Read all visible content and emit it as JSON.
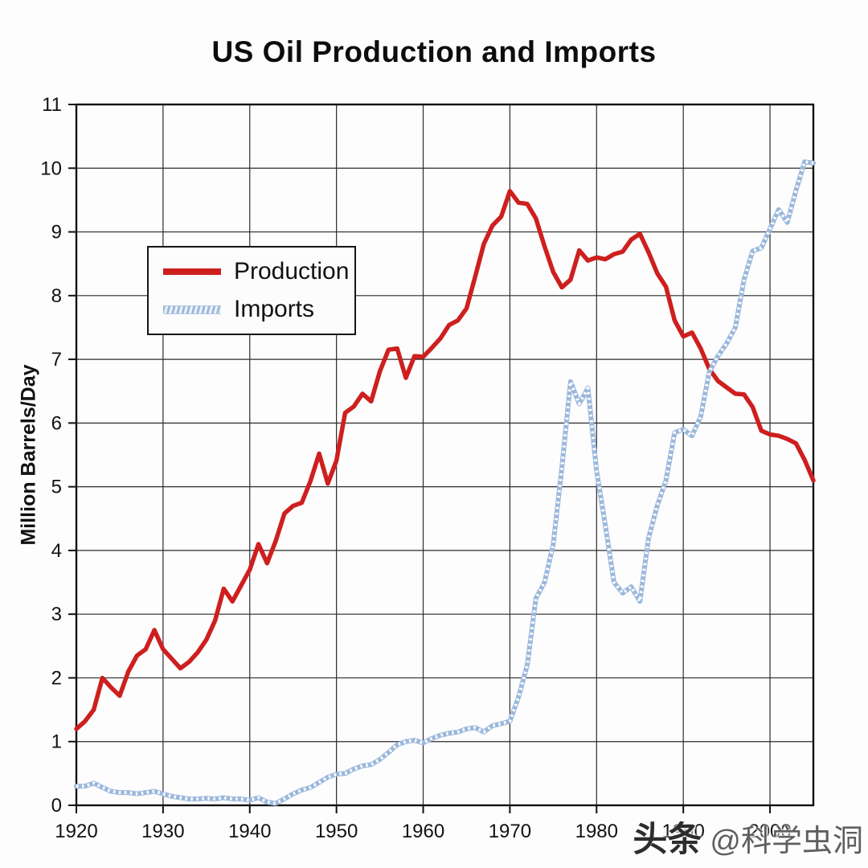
{
  "title": "US Oil Production and Imports",
  "watermark": {
    "brand": "头条",
    "handle": "@科学虫洞"
  },
  "chart_data": {
    "type": "line",
    "title": "US Oil Production and Imports",
    "xlabel": "",
    "ylabel": "Million Barrels/Day",
    "x_start": 1920,
    "x_end": 2005,
    "x_step": 1,
    "ylim": [
      0,
      11
    ],
    "x_ticks": [
      1920,
      1930,
      1940,
      1950,
      1960,
      1970,
      1980,
      1990,
      2000
    ],
    "y_ticks": [
      0,
      1,
      2,
      3,
      4,
      5,
      6,
      7,
      8,
      9,
      10,
      11
    ],
    "grid": true,
    "legend_position": "upper-left-inside",
    "series": [
      {
        "name": "Production",
        "color": "#ce1f1f",
        "style": "solid",
        "values": [
          1.2,
          1.32,
          1.5,
          2.0,
          1.85,
          1.72,
          2.1,
          2.35,
          2.45,
          2.75,
          2.45,
          2.3,
          2.15,
          2.25,
          2.4,
          2.6,
          2.9,
          3.4,
          3.2,
          3.45,
          3.7,
          4.1,
          3.8,
          4.15,
          4.58,
          4.7,
          4.75,
          5.09,
          5.52,
          5.05,
          5.41,
          6.16,
          6.26,
          6.46,
          6.34,
          6.81,
          7.15,
          7.17,
          6.71,
          7.05,
          7.04,
          7.18,
          7.33,
          7.54,
          7.61,
          7.8,
          8.3,
          8.81,
          9.1,
          9.24,
          9.64,
          9.46,
          9.44,
          9.21,
          8.77,
          8.37,
          8.13,
          8.25,
          8.71,
          8.55,
          8.6,
          8.57,
          8.65,
          8.69,
          8.88,
          8.97,
          8.68,
          8.35,
          8.14,
          7.61,
          7.36,
          7.42,
          7.17,
          6.85,
          6.66,
          6.56,
          6.46,
          6.45,
          6.25,
          5.88,
          5.82,
          5.8,
          5.75,
          5.68,
          5.42,
          5.1
        ]
      },
      {
        "name": "Imports",
        "color": "#9cb8dc",
        "style": "hatched",
        "values": [
          0.3,
          0.3,
          0.35,
          0.28,
          0.22,
          0.2,
          0.2,
          0.18,
          0.2,
          0.22,
          0.18,
          0.14,
          0.12,
          0.1,
          0.1,
          0.11,
          0.1,
          0.12,
          0.1,
          0.1,
          0.08,
          0.12,
          0.05,
          0.03,
          0.1,
          0.18,
          0.24,
          0.28,
          0.36,
          0.44,
          0.49,
          0.5,
          0.57,
          0.62,
          0.64,
          0.72,
          0.83,
          0.95,
          1.0,
          1.02,
          0.98,
          1.05,
          1.1,
          1.13,
          1.15,
          1.2,
          1.22,
          1.15,
          1.25,
          1.28,
          1.32,
          1.7,
          2.2,
          3.25,
          3.5,
          4.1,
          5.3,
          6.65,
          6.3,
          6.55,
          5.25,
          4.4,
          3.5,
          3.33,
          3.43,
          3.2,
          4.2,
          4.7,
          5.1,
          5.85,
          5.9,
          5.8,
          6.1,
          6.8,
          7.05,
          7.25,
          7.5,
          8.25,
          8.7,
          8.75,
          9.05,
          9.35,
          9.15,
          9.65,
          10.1,
          10.08
        ]
      }
    ]
  }
}
